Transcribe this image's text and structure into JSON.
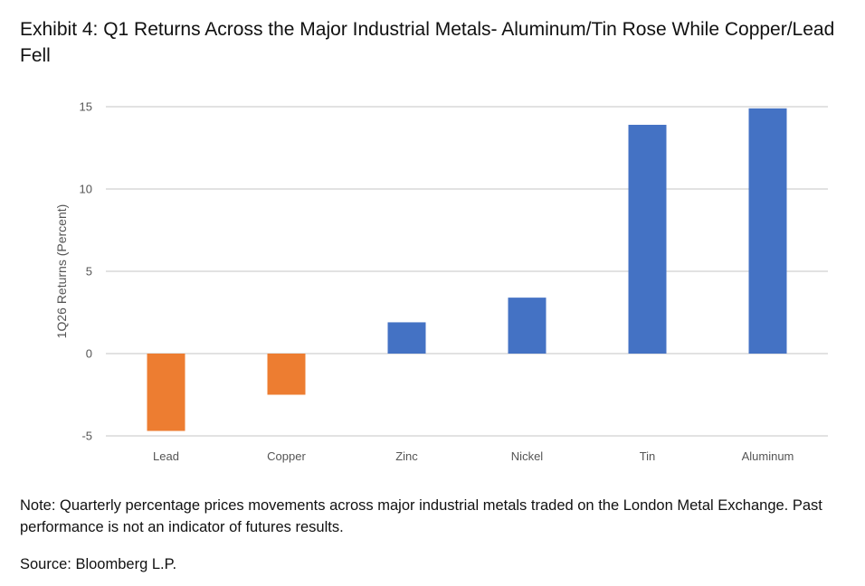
{
  "chart_data": {
    "type": "bar",
    "title": "Exhibit 4: Q1 Returns Across the Major Industrial Metals- Aluminum/Tin Rose While Copper/Lead Fell",
    "xlabel": "",
    "ylabel": "1Q26 Returns (Percent)",
    "categories": [
      "Lead",
      "Copper",
      "Zinc",
      "Nickel",
      "Tin",
      "Aluminum"
    ],
    "values": [
      -4.7,
      -2.5,
      1.9,
      3.4,
      13.9,
      14.9
    ],
    "ylim": [
      -5,
      15
    ],
    "yticks": [
      -5,
      0,
      5,
      10,
      15
    ],
    "grid": true,
    "colors": {
      "positive": "#4472C4",
      "negative": "#ED7D31",
      "grid": "#D9D9D9"
    }
  },
  "note": "Note: Quarterly percentage prices movements across major industrial metals traded on the London Metal Exchange. Past performance is not an indicator of futures results.",
  "source": "Source: Bloomberg L.P."
}
